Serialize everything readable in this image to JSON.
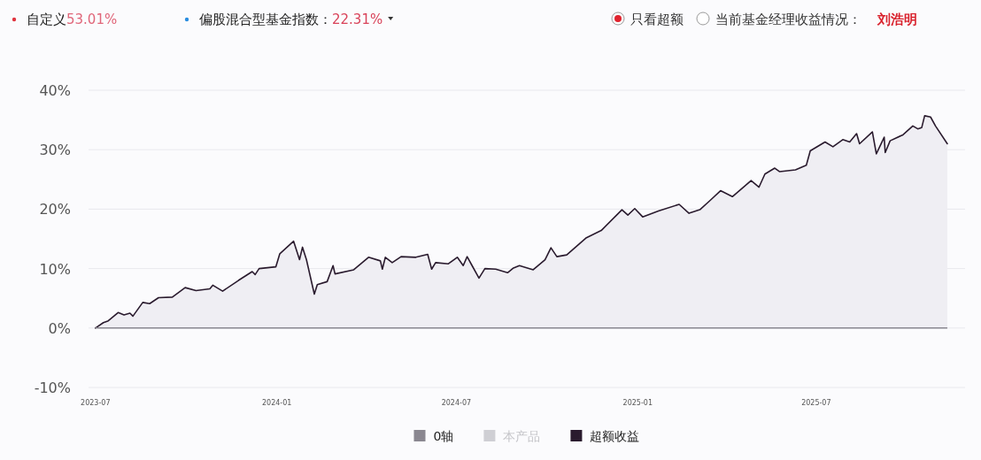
{
  "chart_data": {
    "type": "area",
    "annotations": [
      "自定义",
      "53.01%",
      "偏股混合型基金指数：",
      "22.31%",
      "只看超额",
      "当前基金经理收益情况：",
      "刘浩明"
    ],
    "xlim": [
      "2023-06-24",
      "2025-11-29"
    ],
    "xticks": [
      {
        "value": "2023-07-01",
        "label": "2023-07"
      },
      {
        "value": "2024-01-01",
        "label": "2024-01"
      },
      {
        "value": "2024-07-01",
        "label": "2024-07"
      },
      {
        "value": "2025-01-01",
        "label": "2025-01"
      },
      {
        "value": "2025-07-01",
        "label": "2025-07"
      }
    ],
    "ylim": [
      -10,
      40
    ],
    "yticks": [
      {
        "value": -10,
        "label": "-10%"
      },
      {
        "value": 0,
        "label": "0%"
      },
      {
        "value": 10,
        "label": "10%"
      },
      {
        "value": 20,
        "label": "20%"
      },
      {
        "value": 30,
        "label": "30%"
      },
      {
        "value": 40,
        "label": "40%"
      }
    ],
    "grid": "y",
    "legend": "bottom",
    "series": [
      {
        "name": "0轴",
        "type": "line",
        "color": "#8a8790",
        "x": [
          "2023-07-01",
          "2025-11-11"
        ],
        "values": [
          0,
          0
        ]
      },
      {
        "name": "本产品",
        "type": "line",
        "color": "#cfcfd4",
        "values": [
          null
        ]
      },
      {
        "name": "超额收益",
        "color": "#2a1b2e",
        "x": [
          "2023-07-01",
          "2023-07-09",
          "2023-07-14",
          "2023-07-24",
          "2023-07-30",
          "2023-08-05",
          "2023-08-08",
          "2023-08-18",
          "2023-08-25",
          "2023-09-03",
          "2023-09-17",
          "2023-09-30",
          "2023-10-11",
          "2023-10-25",
          "2023-10-28",
          "2023-11-07",
          "2023-11-23",
          "2023-12-07",
          "2023-12-10",
          "2023-12-14",
          "2023-12-31",
          "2024-01-04",
          "2024-01-18",
          "2024-01-24",
          "2024-01-27",
          "2024-01-31",
          "2024-02-08",
          "2024-02-11",
          "2024-02-21",
          "2024-02-27",
          "2024-02-29",
          "2024-03-19",
          "2024-04-03",
          "2024-04-15",
          "2024-04-17",
          "2024-04-20",
          "2024-04-27",
          "2024-05-06",
          "2024-05-21",
          "2024-06-02",
          "2024-06-06",
          "2024-06-10",
          "2024-06-23",
          "2024-07-02",
          "2024-07-08",
          "2024-07-12",
          "2024-07-17",
          "2024-07-24",
          "2024-07-30",
          "2024-08-10",
          "2024-08-22",
          "2024-08-28",
          "2024-09-03",
          "2024-09-17",
          "2024-09-29",
          "2024-10-05",
          "2024-10-11",
          "2024-10-21",
          "2024-11-10",
          "2024-11-25",
          "2024-12-16",
          "2024-12-22",
          "2024-12-29",
          "2025-01-06",
          "2025-01-22",
          "2025-02-12",
          "2025-02-22",
          "2025-03-05",
          "2025-03-15",
          "2025-03-26",
          "2025-04-07",
          "2025-04-26",
          "2025-05-04",
          "2025-05-10",
          "2025-05-20",
          "2025-05-25",
          "2025-06-10",
          "2025-06-21",
          "2025-06-25",
          "2025-07-10",
          "2025-07-18",
          "2025-07-28",
          "2025-08-04",
          "2025-08-11",
          "2025-08-14",
          "2025-08-27",
          "2025-08-31",
          "2025-09-08",
          "2025-09-09",
          "2025-09-14",
          "2025-09-27",
          "2025-10-07",
          "2025-10-12",
          "2025-10-16",
          "2025-10-19",
          "2025-10-25",
          "2025-10-30",
          "2025-11-11"
        ],
        "values": [
          0,
          0.9,
          1.2,
          2.6,
          2.2,
          2.5,
          2.0,
          4.3,
          4.1,
          5.1,
          5.2,
          6.8,
          6.3,
          6.6,
          7.2,
          6.2,
          8.0,
          9.5,
          9.0,
          10.0,
          10.3,
          12.5,
          14.6,
          11.5,
          13.6,
          11.5,
          5.7,
          7.3,
          7.8,
          10.5,
          9.1,
          9.8,
          11.9,
          11.3,
          9.9,
          11.9,
          11.0,
          12.0,
          11.9,
          12.4,
          9.9,
          11.0,
          10.8,
          11.9,
          10.5,
          12.0,
          10.5,
          8.4,
          10.0,
          9.9,
          9.3,
          10.1,
          10.5,
          9.8,
          11.5,
          13.5,
          12.0,
          12.3,
          15.2,
          16.4,
          19.9,
          19.0,
          20.1,
          18.7,
          19.7,
          20.8,
          19.3,
          19.9,
          21.4,
          23.1,
          22.1,
          24.8,
          23.7,
          25.9,
          26.9,
          26.3,
          26.6,
          27.4,
          29.8,
          31.3,
          30.5,
          31.7,
          31.3,
          32.7,
          31.0,
          33.0,
          29.3,
          32.1,
          29.5,
          31.5,
          32.5,
          34.0,
          33.5,
          33.7,
          35.7,
          35.5,
          34.0,
          31.0
        ]
      }
    ]
  }
}
